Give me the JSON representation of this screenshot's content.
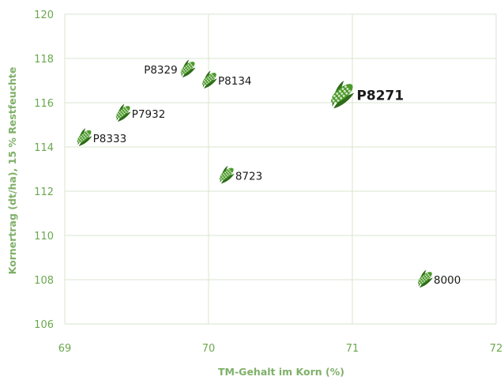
{
  "colors": {
    "accent": "#6aa84f",
    "grid": "#d9e6cf",
    "marker": "#4c9a2a",
    "marker_dark": "#2f6b1a",
    "label": "#1a1a1a"
  },
  "chart_data": {
    "type": "scatter",
    "title": "",
    "xlabel": "TM-Gehalt im Korn (%)",
    "ylabel": "Kornertrag (dt/ha), 15 % Restfeuchte",
    "xlim": [
      69,
      72
    ],
    "ylim": [
      106,
      120
    ],
    "xticks": [
      69,
      70,
      71,
      72
    ],
    "yticks": [
      106,
      108,
      110,
      112,
      114,
      116,
      118,
      120
    ],
    "grid": true,
    "marker_icon": "corn-cob-icon",
    "points": [
      {
        "label": "P8329",
        "x": 69.85,
        "y": 117.5,
        "label_side": "left",
        "highlight": false
      },
      {
        "label": "P8134",
        "x": 70.0,
        "y": 117.0,
        "label_side": "right",
        "highlight": false
      },
      {
        "label": "P7932",
        "x": 69.4,
        "y": 115.5,
        "label_side": "right",
        "highlight": false
      },
      {
        "label": "P8333",
        "x": 69.13,
        "y": 114.4,
        "label_side": "right",
        "highlight": false
      },
      {
        "label": "8723",
        "x": 70.12,
        "y": 112.7,
        "label_side": "right",
        "highlight": false
      },
      {
        "label": "P8271",
        "x": 70.92,
        "y": 116.3,
        "label_side": "right",
        "highlight": true
      },
      {
        "label": "8000",
        "x": 71.5,
        "y": 108.0,
        "label_side": "right",
        "highlight": false
      }
    ]
  }
}
